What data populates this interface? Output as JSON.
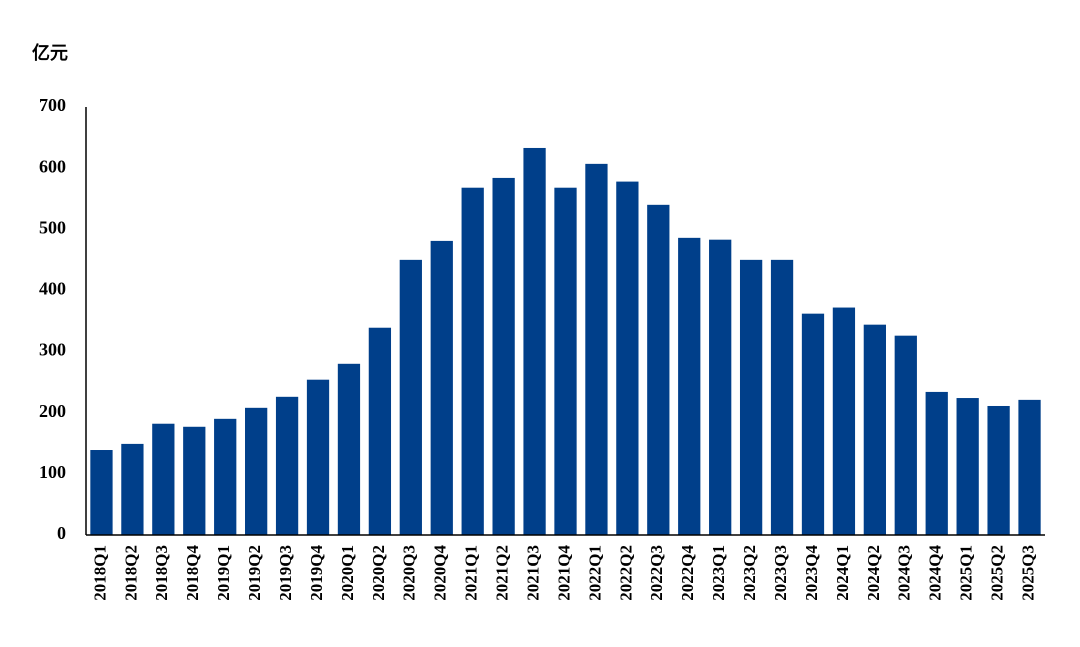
{
  "chart_data": {
    "type": "bar",
    "y_label": "亿元",
    "categories": [
      "2018Q1",
      "2018Q2",
      "2018Q3",
      "2018Q4",
      "2019Q1",
      "2019Q2",
      "2019Q3",
      "2019Q4",
      "2020Q1",
      "2020Q2",
      "2020Q3",
      "2020Q4",
      "2021Q1",
      "2021Q2",
      "2021Q3",
      "2021Q4",
      "2022Q1",
      "2022Q2",
      "2022Q3",
      "2022Q4",
      "2023Q1",
      "2023Q2",
      "2023Q3",
      "2023Q4",
      "2024Q1",
      "2024Q2",
      "2024Q3",
      "2024Q4",
      "2025Q1",
      "2025Q2",
      "2025Q3"
    ],
    "values": [
      139,
      149,
      182,
      177,
      190,
      208,
      226,
      254,
      280,
      339,
      450,
      481,
      568,
      584,
      633,
      568,
      607,
      578,
      540,
      486,
      483,
      450,
      450,
      362,
      372,
      344,
      326,
      234,
      224,
      211,
      221
    ],
    "color": "#003f8a",
    "ylim": [
      0,
      700
    ],
    "yticks": [
      0,
      100,
      200,
      300,
      400,
      500,
      600,
      700
    ],
    "grid": false
  }
}
